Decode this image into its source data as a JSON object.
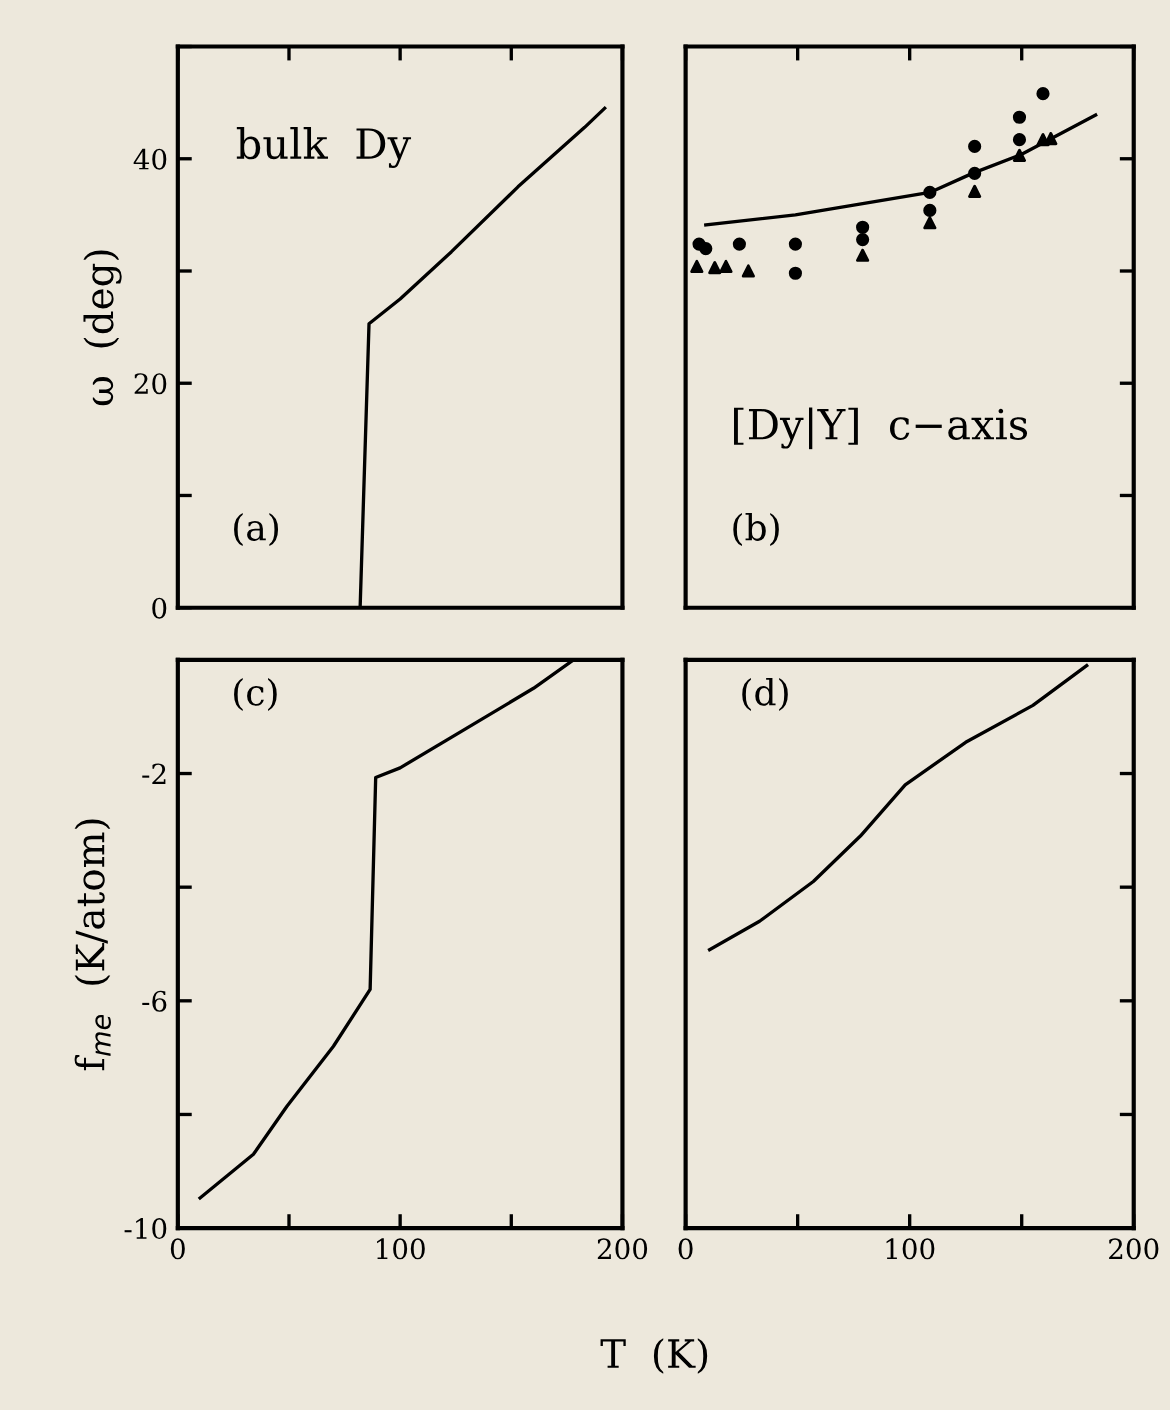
{
  "chart_data": [
    {
      "type": "line",
      "ylabel": "ω  (deg)",
      "annotations": [
        "bulk  Dy",
        "(a)"
      ],
      "tick_labels": "y",
      "grid": false,
      "legend": false,
      "xlim": [
        0,
        200
      ],
      "xticks": [
        {
          "value": 0,
          "label": null
        },
        {
          "value": 50,
          "label": null
        },
        {
          "value": 100,
          "label": null
        },
        {
          "value": 150,
          "label": null
        },
        {
          "value": 200,
          "label": null
        }
      ],
      "ylim": [
        0,
        50
      ],
      "yticks": [
        0,
        {
          "value": 10,
          "label": null
        },
        20,
        {
          "value": 30,
          "label": null
        },
        40,
        {
          "value": 50,
          "label": null
        }
      ],
      "series": [
        {
          "color": "#000000",
          "marker": "none",
          "line_style": "solid",
          "x": [
            82,
            86,
            100,
            123,
            153,
            183,
            192
          ],
          "values": [
            0,
            25.3,
            27.5,
            31.7,
            37.5,
            42.8,
            44.5
          ]
        }
      ]
    },
    {
      "type": "scatter",
      "annotations": [
        "[Dy|Y]  c−axis",
        "(b)"
      ],
      "tick_labels": false,
      "grid": false,
      "legend": false,
      "xlim": [
        0,
        200
      ],
      "xticks": [
        {
          "value": 0,
          "label": null
        },
        {
          "value": 50,
          "label": null
        },
        {
          "value": 100,
          "label": null
        },
        {
          "value": 150,
          "label": null
        },
        {
          "value": 200,
          "label": null
        }
      ],
      "ylim": [
        0,
        50
      ],
      "yticks": [
        0,
        {
          "value": 10,
          "label": null
        },
        20,
        {
          "value": 30,
          "label": null
        },
        40,
        {
          "value": 50,
          "label": null
        }
      ],
      "series": [
        {
          "type": "line",
          "color": "#000000",
          "marker": "none",
          "line_style": "solid",
          "x": [
            9,
            49,
            109,
            128,
            150,
            183
          ],
          "values": [
            34.1,
            35,
            37,
            38.7,
            40.4,
            43.9
          ]
        },
        {
          "color": "#000000",
          "marker": "circle",
          "x": [
            6,
            9,
            24,
            49,
            49,
            79,
            79,
            109,
            109,
            129,
            129,
            149,
            149,
            159.5
          ],
          "values": [
            32.4,
            32,
            32.4,
            32.4,
            29.8,
            33.9,
            32.8,
            37,
            35.4,
            41.1,
            38.7,
            43.7,
            41.7,
            45.8
          ]
        },
        {
          "color": "#000000",
          "marker": "triangle",
          "x": [
            5,
            13,
            18,
            28,
            79,
            109,
            129,
            149,
            159.5,
            163
          ],
          "values": [
            30.4,
            30.3,
            30.4,
            30.0,
            31.4,
            34.3,
            37.1,
            40.3,
            41.7,
            41.8
          ]
        }
      ]
    },
    {
      "type": "line",
      "ylabel": "f$_{me}$  (K/atom)",
      "xlabel": "T  (K)",
      "annotations": [
        "(c)"
      ],
      "grid": false,
      "legend": false,
      "xlim": [
        0,
        200
      ],
      "xticks": [
        0,
        {
          "value": 50,
          "label": null
        },
        100,
        {
          "value": 150,
          "label": null
        },
        200
      ],
      "ylim": [
        -10,
        0
      ],
      "yticks": [
        -10,
        {
          "value": -8,
          "label": null
        },
        -6,
        {
          "value": -4,
          "label": null
        },
        -2,
        {
          "value": 0,
          "label": null
        }
      ],
      "series": [
        {
          "color": "#000000",
          "marker": "none",
          "line_style": "solid",
          "x": [
            10,
            34,
            49,
            70,
            86.5,
            89,
            100,
            130,
            160,
            178
          ],
          "values": [
            -9.47,
            -8.7,
            -7.86,
            -6.8,
            -5.8,
            -2.07,
            -1.9,
            -1.2,
            -0.5,
            0
          ]
        }
      ]
    },
    {
      "type": "line",
      "annotations": [
        "(d)"
      ],
      "tick_labels": "x",
      "grid": false,
      "legend": false,
      "xlim": [
        0,
        200
      ],
      "xticks": [
        0,
        {
          "value": 50,
          "label": null
        },
        100,
        {
          "value": 150,
          "label": null
        },
        200
      ],
      "ylim": [
        -10,
        0
      ],
      "yticks": [
        -10,
        {
          "value": -8,
          "label": null
        },
        -6,
        {
          "value": -4,
          "label": null
        },
        -2,
        {
          "value": 0,
          "label": null
        }
      ],
      "series": [
        {
          "color": "#000000",
          "marker": "none",
          "line_style": "solid",
          "x": [
            10.7,
            33,
            57,
            78,
            98,
            125,
            155,
            179
          ],
          "values": [
            -5.1,
            -4.6,
            -3.9,
            -3.1,
            -2.2,
            -1.45,
            -0.8,
            -0.1
          ]
        }
      ]
    }
  ]
}
